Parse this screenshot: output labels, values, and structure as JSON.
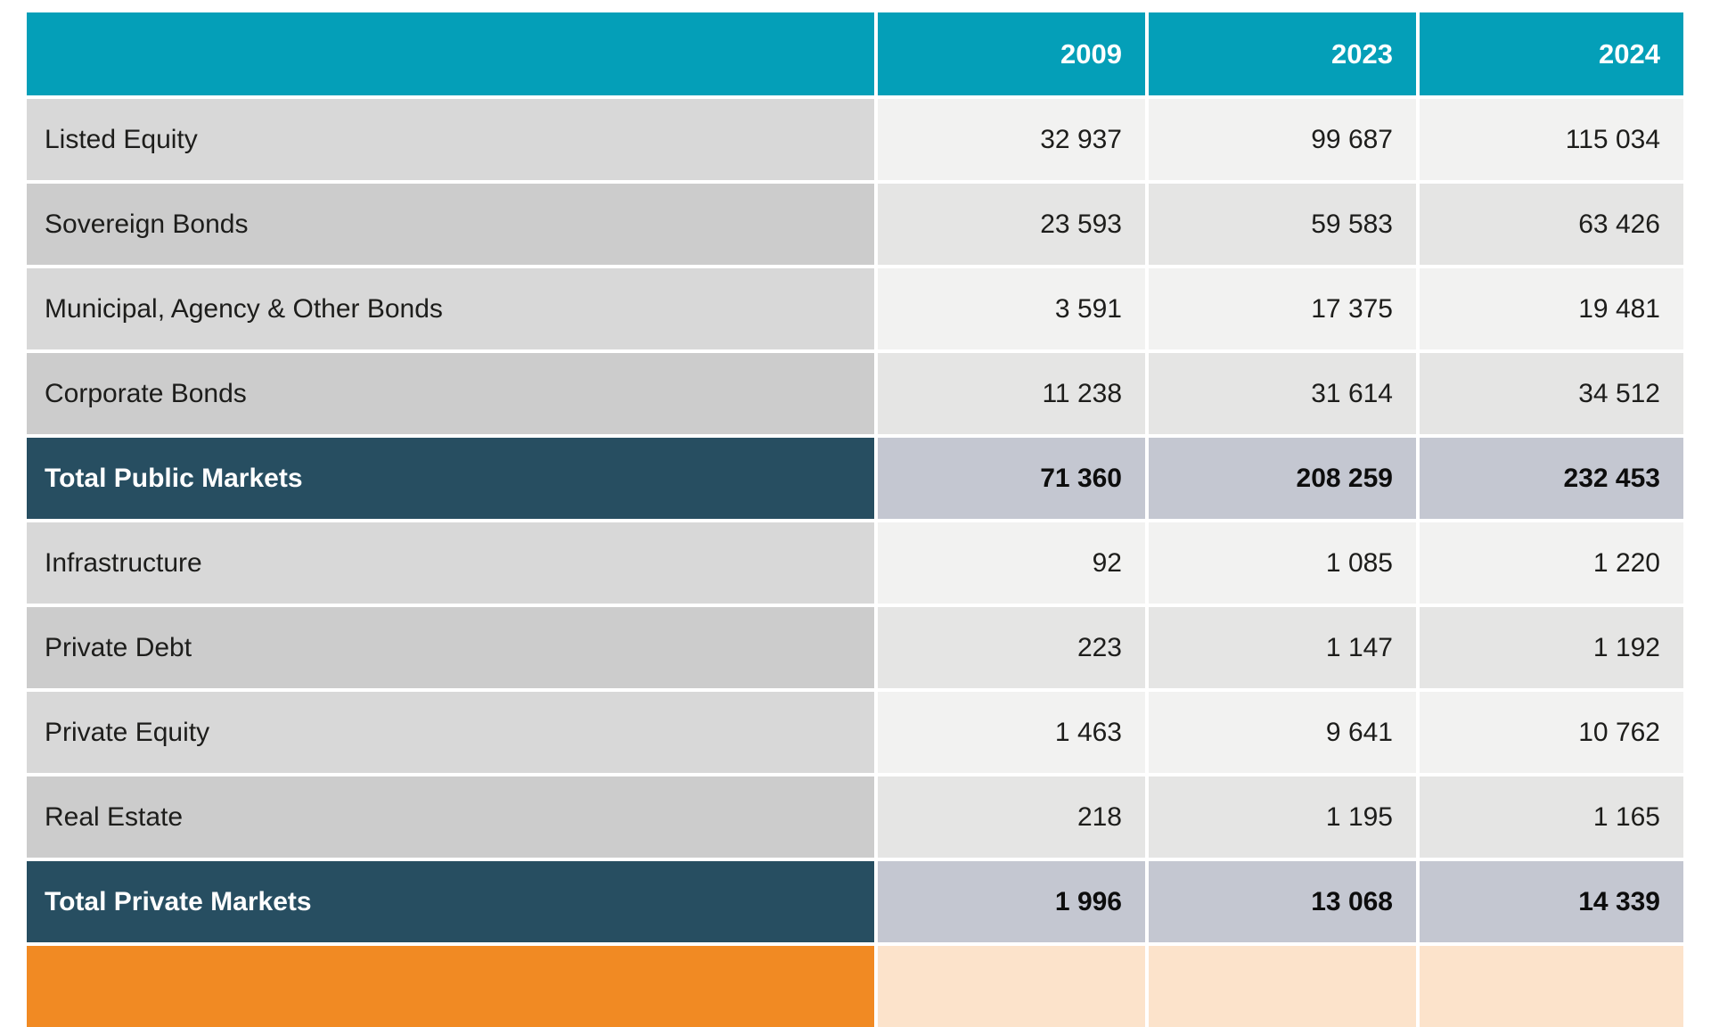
{
  "table": {
    "columns": [
      "",
      "2009",
      "2023",
      "2024"
    ],
    "rows": [
      {
        "type": "data",
        "shade": "light",
        "label": "Listed Equity",
        "values": [
          "32 937",
          "99 687",
          "115 034"
        ]
      },
      {
        "type": "data",
        "shade": "dark",
        "label": "Sovereign Bonds",
        "values": [
          "23 593",
          "59 583",
          "63 426"
        ]
      },
      {
        "type": "data",
        "shade": "light",
        "label": "Municipal, Agency & Other Bonds",
        "values": [
          "3 591",
          "17 375",
          "19 481"
        ]
      },
      {
        "type": "data",
        "shade": "dark",
        "label": "Corporate Bonds",
        "values": [
          "11 238",
          "31 614",
          "34 512"
        ]
      },
      {
        "type": "total",
        "shade": "",
        "label": "Total Public Markets",
        "values": [
          "71 360",
          "208 259",
          "232 453"
        ]
      },
      {
        "type": "data",
        "shade": "light",
        "label": "Infrastructure",
        "values": [
          "92",
          "1 085",
          "1 220"
        ]
      },
      {
        "type": "data",
        "shade": "dark",
        "label": "Private Debt",
        "values": [
          "223",
          "1 147",
          "1 192"
        ]
      },
      {
        "type": "data",
        "shade": "light",
        "label": "Private Equity",
        "values": [
          "1 463",
          "9 641",
          "10 762"
        ]
      },
      {
        "type": "data",
        "shade": "dark",
        "label": "Real Estate",
        "values": [
          "218",
          "1 195",
          "1 165"
        ]
      },
      {
        "type": "total",
        "shade": "",
        "label": "Total Private Markets",
        "values": [
          "1 996",
          "13 068",
          "14 339"
        ]
      },
      {
        "type": "accent",
        "shade": "",
        "label": "",
        "values": [
          "",
          "",
          ""
        ]
      }
    ],
    "colors": {
      "header_teal": "#049fb8",
      "total_row_blue": "#274e61",
      "total_value_gray": "#c4c7d1",
      "accent_orange": "#f18a23",
      "accent_peach": "#fce3cb",
      "row_label_light": "#d8d8d8",
      "row_label_dark": "#cccccc",
      "row_value_light": "#f2f2f1",
      "row_value_dark": "#e5e5e4"
    }
  },
  "chart_data": {
    "type": "table",
    "title": "",
    "columns": [
      "",
      "2009",
      "2023",
      "2024"
    ],
    "rows": [
      [
        "Listed Equity",
        32937,
        99687,
        115034
      ],
      [
        "Sovereign Bonds",
        23593,
        59583,
        63426
      ],
      [
        "Municipal, Agency & Other Bonds",
        3591,
        17375,
        19481
      ],
      [
        "Corporate Bonds",
        11238,
        31614,
        34512
      ],
      [
        "Total Public Markets",
        71360,
        208259,
        232453
      ],
      [
        "Infrastructure",
        92,
        1085,
        1220
      ],
      [
        "Private Debt",
        223,
        1147,
        1192
      ],
      [
        "Private Equity",
        1463,
        9641,
        10762
      ],
      [
        "Real Estate",
        218,
        1195,
        1165
      ],
      [
        "Total Private Markets",
        1996,
        13068,
        14339
      ]
    ],
    "layout_hints": {
      "header_background": "#049fb8",
      "total_rows_bold": true,
      "values_right_aligned": true,
      "bottom_accent_row_clipped": true
    }
  }
}
